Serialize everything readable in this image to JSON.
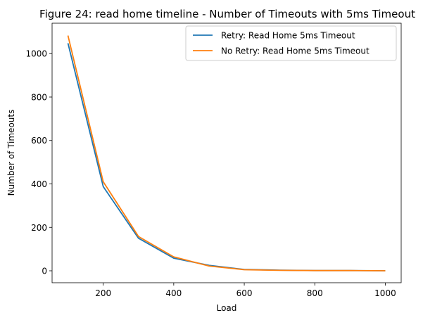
{
  "chart_data": {
    "type": "line",
    "title": "Figure 24: read home timeline - Number of Timeouts with 5ms Timeout",
    "xlabel": "Load",
    "ylabel": "Number of Timeouts",
    "x": [
      100,
      200,
      300,
      400,
      500,
      600,
      700,
      800,
      900,
      1000
    ],
    "xlim": [
      55,
      1045
    ],
    "ylim": [
      -55,
      1140
    ],
    "xticks": [
      200,
      400,
      600,
      800,
      1000
    ],
    "yticks": [
      0,
      200,
      400,
      600,
      800,
      1000
    ],
    "grid": false,
    "legend_position": "top-right",
    "series": [
      {
        "name": "Retry: Read Home 5ms Timeout",
        "color": "#1f77b4",
        "values": [
          1048,
          388,
          150,
          58,
          25,
          6,
          3,
          1,
          1,
          0
        ]
      },
      {
        "name": "No Retry: Read Home 5ms Timeout",
        "color": "#ff7f0e",
        "values": [
          1083,
          410,
          158,
          64,
          22,
          5,
          2,
          1,
          1,
          0
        ]
      }
    ]
  }
}
